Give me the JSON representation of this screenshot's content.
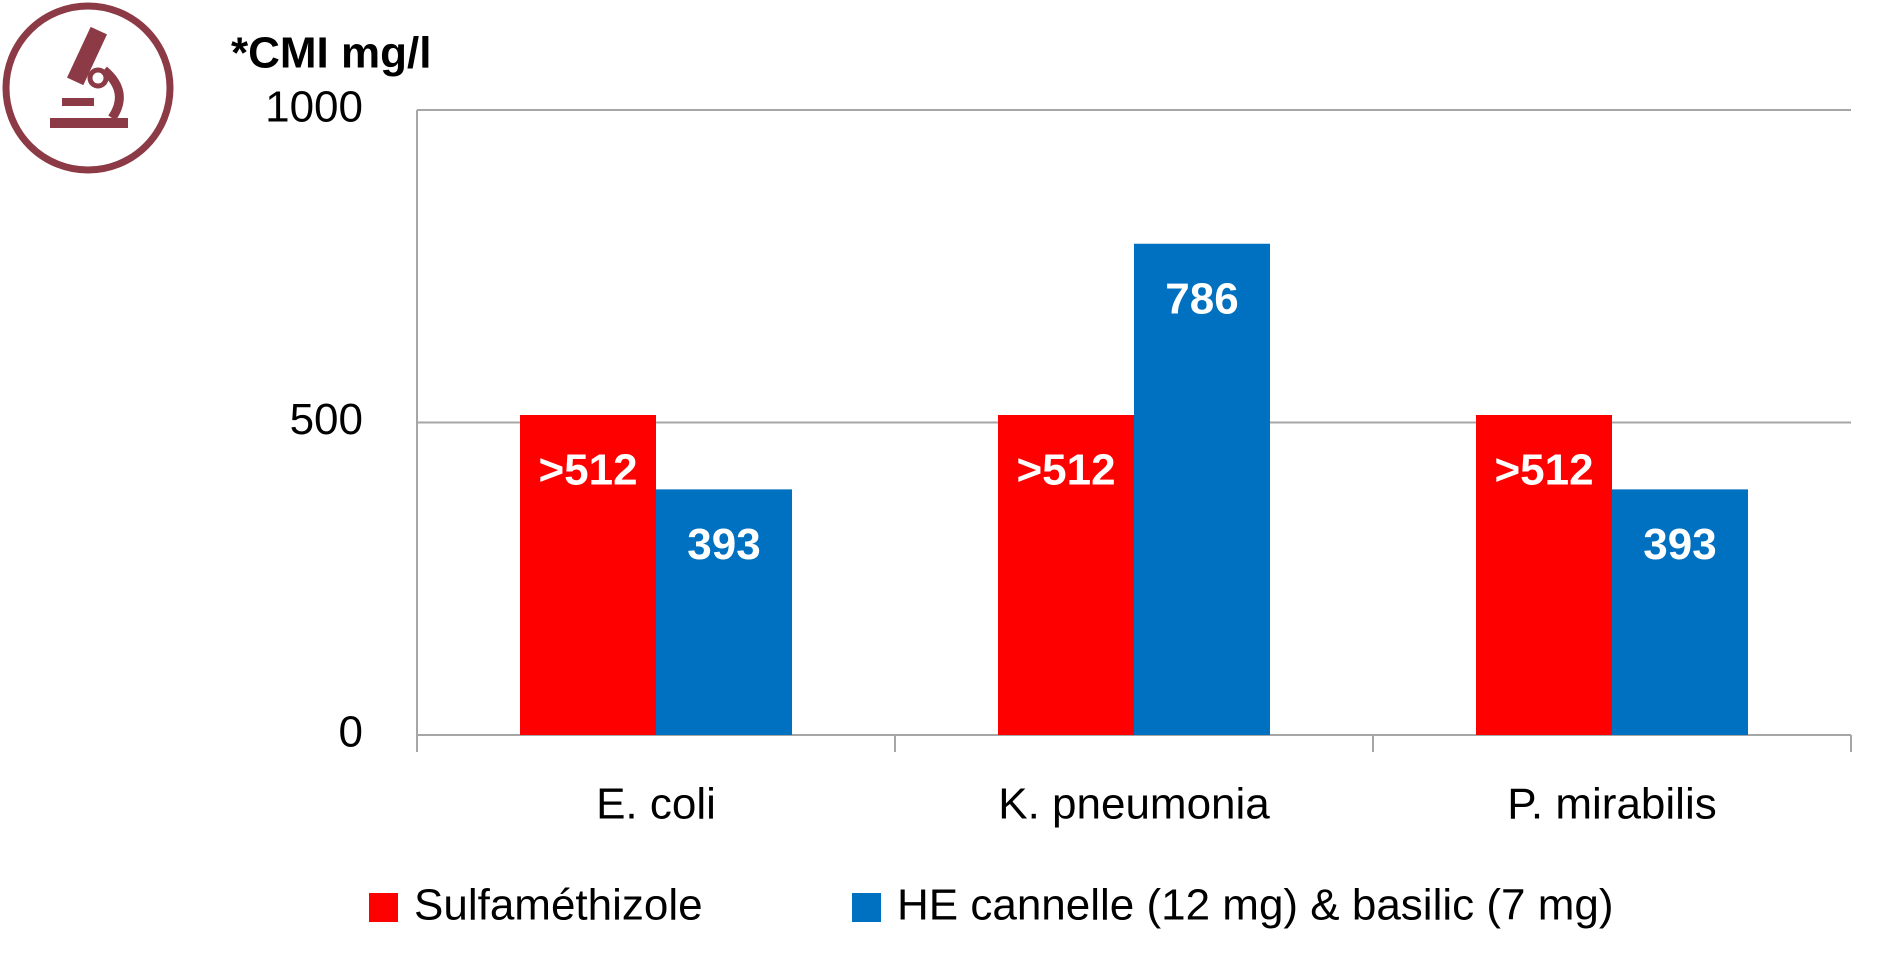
{
  "chart_data": {
    "type": "bar",
    "y_label": "*CMI mg/l",
    "categories": [
      "E. coli",
      "K. pneumonia",
      "P. mirabilis"
    ],
    "series": [
      {
        "name": "Sulfaméthizole",
        "color": "#ff0000",
        "values": [
          512,
          512,
          512
        ],
        "value_labels": [
          ">512",
          ">512",
          ">512"
        ]
      },
      {
        "name": "HE cannelle (12 mg) & basilic (7 mg)",
        "color": "#0070c0",
        "values": [
          393,
          786,
          393
        ]
      }
    ],
    "ylim": [
      0,
      1000
    ],
    "yticks": [
      0,
      500,
      1000
    ],
    "grid": true
  }
}
